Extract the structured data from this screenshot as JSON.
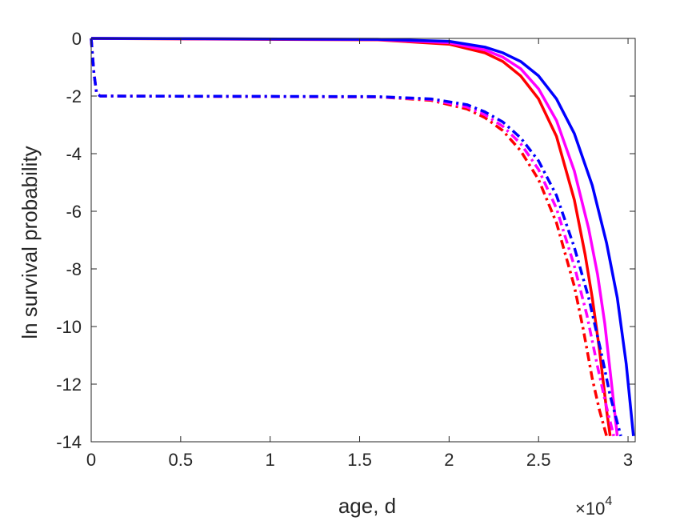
{
  "chart_data": {
    "type": "line",
    "xlabel": "age, d",
    "ylabel": "ln survival probability",
    "x_multiplier": "×10",
    "x_multiplier_exp": "4",
    "xlim": [
      0,
      30400
    ],
    "ylim": [
      -14,
      0
    ],
    "xticks": [
      0,
      5000,
      10000,
      15000,
      20000,
      25000,
      30000
    ],
    "xtick_labels": [
      "0",
      "0.5",
      "1",
      "1.5",
      "2",
      "2.5",
      "3"
    ],
    "yticks": [
      0,
      -2,
      -4,
      -6,
      -8,
      -10,
      -12,
      -14
    ],
    "ytick_labels": [
      "0",
      "-2",
      "-4",
      "-6",
      "-8",
      "-10",
      "-12",
      "-14"
    ],
    "grid": false,
    "legend": "none",
    "series": [
      {
        "color": "#ff0000",
        "style": "solid",
        "x": [
          0,
          16000,
          20000,
          22000,
          23000,
          24000,
          25000,
          26000,
          27000,
          27600,
          28000,
          28400,
          28800,
          29000
        ],
        "y": [
          0,
          -0.05,
          -0.2,
          -0.5,
          -0.8,
          -1.3,
          -2.1,
          -3.4,
          -5.6,
          -7.5,
          -9.0,
          -10.8,
          -12.9,
          -13.8
        ]
      },
      {
        "color": "#ff00ff",
        "style": "solid",
        "x": [
          0,
          16000,
          20000,
          22000,
          23000,
          24000,
          25000,
          26000,
          27000,
          27800,
          28300,
          28700,
          29100,
          29400
        ],
        "y": [
          0,
          -0.04,
          -0.15,
          -0.4,
          -0.65,
          -1.05,
          -1.75,
          -2.85,
          -4.6,
          -6.6,
          -8.2,
          -9.9,
          -12.1,
          -13.8
        ]
      },
      {
        "color": "#0000ff",
        "style": "solid",
        "x": [
          0,
          16000,
          20000,
          22000,
          23000,
          24000,
          25000,
          26000,
          27000,
          28000,
          28800,
          29400,
          29900,
          30300
        ],
        "y": [
          0,
          -0.03,
          -0.1,
          -0.3,
          -0.5,
          -0.8,
          -1.3,
          -2.1,
          -3.3,
          -5.1,
          -7.1,
          -9.0,
          -11.3,
          -13.8
        ]
      },
      {
        "color": "#ff0000",
        "style": "dashdot",
        "x": [
          0,
          150,
          300,
          500,
          16000,
          19000,
          21000,
          22000,
          23000,
          24000,
          25000,
          26000,
          27000,
          27500,
          28000,
          28400,
          28800
        ],
        "y": [
          0,
          -1.2,
          -1.9,
          -2.0,
          -2.03,
          -2.15,
          -2.45,
          -2.75,
          -3.2,
          -3.9,
          -4.9,
          -6.4,
          -8.6,
          -10.1,
          -11.8,
          -12.9,
          -13.8
        ]
      },
      {
        "color": "#ff00ff",
        "style": "dashdot",
        "x": [
          0,
          150,
          300,
          500,
          16000,
          19000,
          21000,
          22000,
          23000,
          24000,
          25000,
          26000,
          27000,
          27700,
          28300,
          28800,
          29200
        ],
        "y": [
          0,
          -1.2,
          -1.9,
          -2.0,
          -2.03,
          -2.12,
          -2.38,
          -2.65,
          -3.05,
          -3.65,
          -4.55,
          -5.9,
          -7.9,
          -9.6,
          -11.4,
          -12.8,
          -13.8
        ]
      },
      {
        "color": "#0000ff",
        "style": "dashdot",
        "x": [
          0,
          150,
          300,
          500,
          16000,
          19000,
          21000,
          22000,
          23000,
          24000,
          25000,
          26000,
          27000,
          27800,
          28500,
          29000,
          29600
        ],
        "y": [
          0,
          -1.2,
          -1.9,
          -2.0,
          -2.02,
          -2.1,
          -2.3,
          -2.55,
          -2.9,
          -3.45,
          -4.25,
          -5.45,
          -7.25,
          -9.0,
          -10.9,
          -12.4,
          -13.8
        ]
      }
    ]
  }
}
